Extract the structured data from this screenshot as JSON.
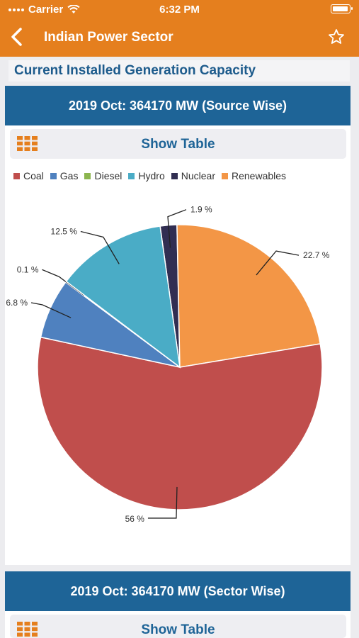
{
  "status_bar": {
    "carrier": "Carrier",
    "time": "6:32 PM"
  },
  "navbar": {
    "title": "Indian Power Sector",
    "back_icon": "chevron-left-icon",
    "favorite_icon": "star-outline-icon"
  },
  "section_title": "Current Installed Generation Capacity",
  "cards": [
    {
      "header": "2019 Oct: 364170 MW (Source Wise)",
      "show_table_label": "Show Table"
    },
    {
      "header": "2019 Oct: 364170 MW (Sector Wise)",
      "show_table_label": "Show Table"
    }
  ],
  "colors": {
    "accent": "#e57f1e",
    "header_blue": "#1e6497"
  },
  "chart_data": {
    "type": "pie",
    "legend_position": "top",
    "series": [
      {
        "name": "Coal",
        "value": 56,
        "label": "56 %",
        "color": "#c04e4c"
      },
      {
        "name": "Gas",
        "value": 6.8,
        "label": "6.8 %",
        "color": "#4f81bf"
      },
      {
        "name": "Diesel",
        "value": 0.1,
        "label": "0.1 %",
        "color": "#8cb54f"
      },
      {
        "name": "Hydro",
        "value": 12.5,
        "label": "12.5 %",
        "color": "#4aacc6"
      },
      {
        "name": "Nuclear",
        "value": 1.9,
        "label": "1.9 %",
        "color": "#312e52"
      },
      {
        "name": "Renewables",
        "value": 22.7,
        "label": "22.7 %",
        "color": "#f39646"
      }
    ]
  }
}
